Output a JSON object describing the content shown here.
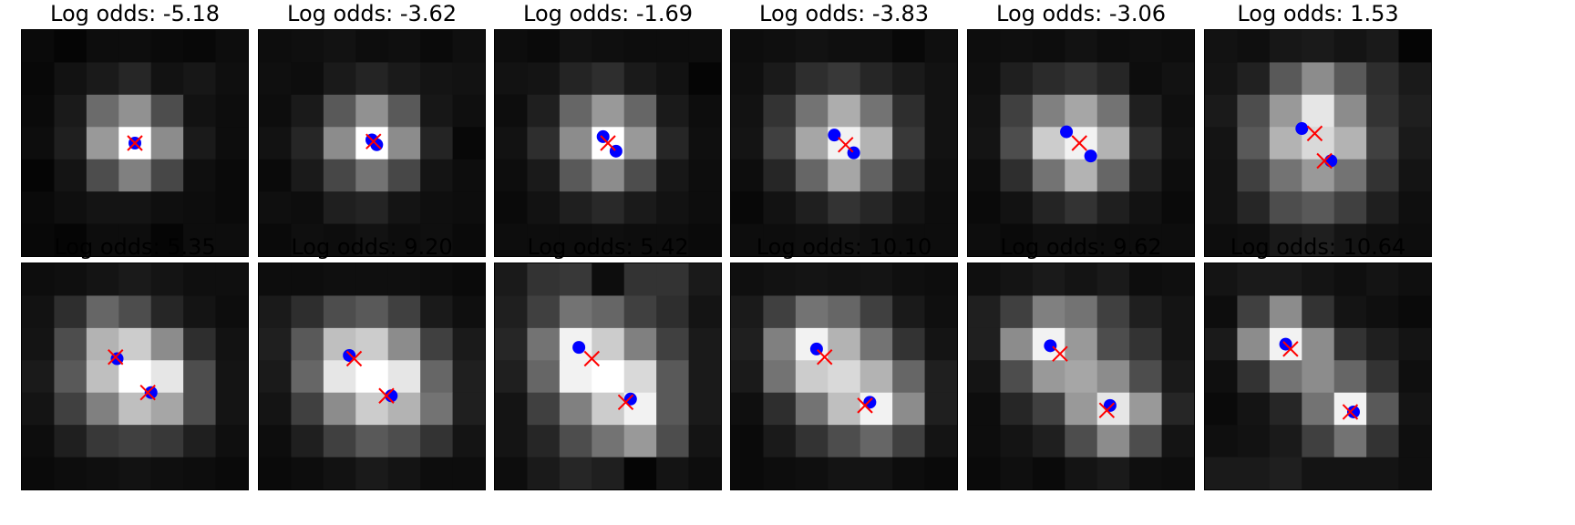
{
  "chart_data": {
    "type": "image-grid",
    "layout": {
      "rows": 2,
      "cols": 6
    },
    "pixel_grid": 7,
    "marker_legend": {
      "true_position": {
        "marker": "circle",
        "color": "#0000ff"
      },
      "estimated_position": {
        "marker": "x",
        "color": "#ff0000"
      }
    },
    "panels": [
      {
        "title": "Log odds: -5.18",
        "circles": [
          [
            3.5,
            3.5
          ]
        ],
        "crosses": [
          [
            3.5,
            3.5
          ]
        ],
        "pixels": [
          [
            0.04,
            0.02,
            0.05,
            0.05,
            0.04,
            0.03,
            0.05
          ],
          [
            0.03,
            0.07,
            0.1,
            0.15,
            0.07,
            0.09,
            0.06
          ],
          [
            0.04,
            0.1,
            0.42,
            0.57,
            0.3,
            0.07,
            0.05
          ],
          [
            0.05,
            0.12,
            0.6,
            1.0,
            0.55,
            0.1,
            0.05
          ],
          [
            0.02,
            0.08,
            0.3,
            0.5,
            0.28,
            0.06,
            0.04
          ],
          [
            0.04,
            0.06,
            0.08,
            0.08,
            0.06,
            0.05,
            0.04
          ],
          [
            0.03,
            0.02,
            0.05,
            0.05,
            0.02,
            0.05,
            0.05
          ]
        ]
      },
      {
        "title": "Log odds: -3.62",
        "circles": [
          [
            3.5,
            3.4
          ],
          [
            3.65,
            3.55
          ]
        ],
        "crosses": [
          [
            3.55,
            3.45
          ]
        ],
        "pixels": [
          [
            0.05,
            0.06,
            0.07,
            0.05,
            0.06,
            0.04,
            0.06
          ],
          [
            0.06,
            0.05,
            0.1,
            0.14,
            0.1,
            0.08,
            0.07
          ],
          [
            0.05,
            0.1,
            0.35,
            0.57,
            0.35,
            0.09,
            0.06
          ],
          [
            0.07,
            0.15,
            0.55,
            1.0,
            0.55,
            0.14,
            0.03
          ],
          [
            0.04,
            0.1,
            0.28,
            0.45,
            0.28,
            0.08,
            0.05
          ],
          [
            0.06,
            0.05,
            0.12,
            0.14,
            0.08,
            0.06,
            0.05
          ],
          [
            0.04,
            0.06,
            0.05,
            0.07,
            0.05,
            0.06,
            0.04
          ]
        ]
      },
      {
        "title": "Log odds: -1.69",
        "circles": [
          [
            3.35,
            3.3
          ],
          [
            3.75,
            3.75
          ]
        ],
        "crosses": [
          [
            3.5,
            3.5
          ]
        ],
        "pixels": [
          [
            0.05,
            0.04,
            0.07,
            0.06,
            0.05,
            0.05,
            0.05
          ],
          [
            0.07,
            0.08,
            0.14,
            0.18,
            0.1,
            0.07,
            0.02
          ],
          [
            0.05,
            0.12,
            0.4,
            0.6,
            0.4,
            0.1,
            0.05
          ],
          [
            0.07,
            0.18,
            0.55,
            1.0,
            0.6,
            0.15,
            0.06
          ],
          [
            0.05,
            0.1,
            0.35,
            0.55,
            0.3,
            0.09,
            0.05
          ],
          [
            0.04,
            0.07,
            0.12,
            0.16,
            0.1,
            0.07,
            0.05
          ],
          [
            0.05,
            0.05,
            0.05,
            0.06,
            0.05,
            0.05,
            0.04
          ]
        ]
      },
      {
        "title": "Log odds: -3.83",
        "circles": [
          [
            3.2,
            3.25
          ],
          [
            3.8,
            3.8
          ]
        ],
        "crosses": [
          [
            3.55,
            3.55
          ]
        ],
        "pixels": [
          [
            0.05,
            0.06,
            0.07,
            0.06,
            0.06,
            0.03,
            0.06
          ],
          [
            0.06,
            0.1,
            0.18,
            0.22,
            0.15,
            0.1,
            0.07
          ],
          [
            0.07,
            0.2,
            0.45,
            0.68,
            0.45,
            0.18,
            0.07
          ],
          [
            0.08,
            0.25,
            0.65,
            0.95,
            0.7,
            0.22,
            0.07
          ],
          [
            0.05,
            0.15,
            0.4,
            0.65,
            0.38,
            0.15,
            0.06
          ],
          [
            0.03,
            0.07,
            0.12,
            0.2,
            0.15,
            0.08,
            0.05
          ],
          [
            0.05,
            0.05,
            0.06,
            0.07,
            0.06,
            0.05,
            0.05
          ]
        ]
      },
      {
        "title": "Log odds: -3.06",
        "circles": [
          [
            3.05,
            3.15
          ],
          [
            3.8,
            3.9
          ]
        ],
        "crosses": [
          [
            3.45,
            3.5
          ]
        ],
        "pixels": [
          [
            0.05,
            0.06,
            0.05,
            0.07,
            0.05,
            0.06,
            0.05
          ],
          [
            0.06,
            0.12,
            0.17,
            0.2,
            0.15,
            0.05,
            0.07
          ],
          [
            0.07,
            0.25,
            0.5,
            0.65,
            0.45,
            0.12,
            0.06
          ],
          [
            0.08,
            0.3,
            0.8,
            0.95,
            0.7,
            0.18,
            0.07
          ],
          [
            0.05,
            0.18,
            0.45,
            0.7,
            0.4,
            0.12,
            0.05
          ],
          [
            0.04,
            0.07,
            0.14,
            0.2,
            0.12,
            0.07,
            0.04
          ],
          [
            0.05,
            0.04,
            0.06,
            0.06,
            0.05,
            0.05,
            0.05
          ]
        ]
      },
      {
        "title": "Log odds: 1.53",
        "circles": [
          [
            3.0,
            3.05
          ],
          [
            3.9,
            4.05
          ]
        ],
        "crosses": [
          [
            3.4,
            3.2
          ],
          [
            3.7,
            4.05
          ]
        ],
        "pixels": [
          [
            0.07,
            0.06,
            0.09,
            0.1,
            0.08,
            0.1,
            0.02
          ],
          [
            0.08,
            0.13,
            0.35,
            0.55,
            0.35,
            0.18,
            0.1
          ],
          [
            0.1,
            0.3,
            0.6,
            0.9,
            0.55,
            0.2,
            0.12
          ],
          [
            0.08,
            0.35,
            0.7,
            0.85,
            0.7,
            0.25,
            0.1
          ],
          [
            0.07,
            0.25,
            0.45,
            0.6,
            0.45,
            0.2,
            0.08
          ],
          [
            0.07,
            0.15,
            0.3,
            0.35,
            0.25,
            0.12,
            0.06
          ],
          [
            0.05,
            0.06,
            0.1,
            0.12,
            0.08,
            0.06,
            0.05
          ]
        ]
      },
      {
        "title": "Log odds: 5.35",
        "circles": [
          [
            2.95,
            2.95
          ],
          [
            4.0,
            4.0
          ]
        ],
        "crosses": [
          [
            2.9,
            2.9
          ],
          [
            3.9,
            4.0
          ]
        ],
        "pixels": [
          [
            0.05,
            0.06,
            0.08,
            0.1,
            0.08,
            0.06,
            0.06
          ],
          [
            0.07,
            0.18,
            0.4,
            0.3,
            0.15,
            0.08,
            0.05
          ],
          [
            0.08,
            0.3,
            0.7,
            0.8,
            0.55,
            0.18,
            0.07
          ],
          [
            0.1,
            0.35,
            0.75,
            1.0,
            0.9,
            0.3,
            0.08
          ],
          [
            0.08,
            0.25,
            0.5,
            0.75,
            0.65,
            0.3,
            0.08
          ],
          [
            0.05,
            0.12,
            0.22,
            0.25,
            0.22,
            0.12,
            0.06
          ],
          [
            0.04,
            0.05,
            0.06,
            0.07,
            0.06,
            0.05,
            0.04
          ]
        ]
      },
      {
        "title": "Log odds: 9.20",
        "circles": [
          [
            2.8,
            2.85
          ],
          [
            4.1,
            4.1
          ]
        ],
        "crosses": [
          [
            2.95,
            2.95
          ],
          [
            3.95,
            4.1
          ]
        ],
        "pixels": [
          [
            0.05,
            0.05,
            0.06,
            0.06,
            0.06,
            0.05,
            0.04
          ],
          [
            0.1,
            0.18,
            0.3,
            0.35,
            0.25,
            0.1,
            0.06
          ],
          [
            0.12,
            0.35,
            0.75,
            0.8,
            0.55,
            0.25,
            0.1
          ],
          [
            0.1,
            0.4,
            0.9,
            1.0,
            0.9,
            0.4,
            0.12
          ],
          [
            0.08,
            0.25,
            0.55,
            0.8,
            0.7,
            0.45,
            0.12
          ],
          [
            0.05,
            0.12,
            0.25,
            0.35,
            0.3,
            0.2,
            0.08
          ],
          [
            0.04,
            0.05,
            0.07,
            0.1,
            0.08,
            0.05,
            0.05
          ]
        ]
      },
      {
        "title": "Log odds: 5.42",
        "circles": [
          [
            2.6,
            2.6
          ],
          [
            4.2,
            4.2
          ]
        ],
        "crosses": [
          [
            3.0,
            2.95
          ],
          [
            4.05,
            4.3
          ]
        ],
        "pixels": [
          [
            0.1,
            0.2,
            0.22,
            0.05,
            0.2,
            0.2,
            0.1
          ],
          [
            0.12,
            0.25,
            0.45,
            0.4,
            0.25,
            0.18,
            0.08
          ],
          [
            0.15,
            0.45,
            0.95,
            0.8,
            0.5,
            0.25,
            0.1
          ],
          [
            0.12,
            0.4,
            0.95,
            1.0,
            0.85,
            0.35,
            0.1
          ],
          [
            0.08,
            0.25,
            0.5,
            0.8,
            0.95,
            0.35,
            0.1
          ],
          [
            0.08,
            0.15,
            0.3,
            0.45,
            0.6,
            0.3,
            0.08
          ],
          [
            0.05,
            0.1,
            0.15,
            0.12,
            0.02,
            0.08,
            0.05
          ]
        ]
      },
      {
        "title": "Log odds: 10.10",
        "circles": [
          [
            2.65,
            2.65
          ],
          [
            4.3,
            4.3
          ]
        ],
        "crosses": [
          [
            2.9,
            2.9
          ],
          [
            4.15,
            4.4
          ]
        ],
        "pixels": [
          [
            0.06,
            0.07,
            0.08,
            0.07,
            0.08,
            0.06,
            0.05
          ],
          [
            0.1,
            0.25,
            0.45,
            0.4,
            0.25,
            0.1,
            0.06
          ],
          [
            0.12,
            0.5,
            0.95,
            0.7,
            0.45,
            0.2,
            0.08
          ],
          [
            0.1,
            0.45,
            0.8,
            0.85,
            0.7,
            0.4,
            0.12
          ],
          [
            0.06,
            0.18,
            0.45,
            0.75,
            0.95,
            0.55,
            0.12
          ],
          [
            0.04,
            0.1,
            0.2,
            0.3,
            0.4,
            0.25,
            0.08
          ],
          [
            0.04,
            0.05,
            0.06,
            0.08,
            0.08,
            0.05,
            0.04
          ]
        ]
      },
      {
        "title": "Log odds: 9.62",
        "circles": [
          [
            2.55,
            2.55
          ],
          [
            4.4,
            4.4
          ]
        ],
        "crosses": [
          [
            2.85,
            2.8
          ],
          [
            4.3,
            4.55
          ]
        ],
        "pixels": [
          [
            0.06,
            0.08,
            0.1,
            0.08,
            0.1,
            0.05,
            0.06
          ],
          [
            0.12,
            0.25,
            0.5,
            0.45,
            0.25,
            0.12,
            0.08
          ],
          [
            0.12,
            0.55,
            0.95,
            0.6,
            0.3,
            0.2,
            0.08
          ],
          [
            0.08,
            0.3,
            0.6,
            0.65,
            0.55,
            0.3,
            0.1
          ],
          [
            0.05,
            0.15,
            0.25,
            0.6,
            0.9,
            0.6,
            0.15
          ],
          [
            0.05,
            0.08,
            0.12,
            0.3,
            0.55,
            0.3,
            0.08
          ],
          [
            0.04,
            0.06,
            0.04,
            0.08,
            0.1,
            0.06,
            0.05
          ]
        ]
      },
      {
        "title": "Log odds: 10.64",
        "circles": [
          [
            2.5,
            2.5
          ],
          [
            4.6,
            4.6
          ]
        ],
        "crosses": [
          [
            2.65,
            2.65
          ],
          [
            4.5,
            4.6
          ]
        ],
        "pixels": [
          [
            0.08,
            0.1,
            0.1,
            0.08,
            0.06,
            0.08,
            0.06
          ],
          [
            0.05,
            0.25,
            0.55,
            0.2,
            0.08,
            0.06,
            0.04
          ],
          [
            0.1,
            0.55,
            0.95,
            0.55,
            0.2,
            0.12,
            0.08
          ],
          [
            0.06,
            0.2,
            0.45,
            0.55,
            0.4,
            0.2,
            0.06
          ],
          [
            0.04,
            0.08,
            0.15,
            0.45,
            0.95,
            0.35,
            0.08
          ],
          [
            0.06,
            0.07,
            0.1,
            0.25,
            0.45,
            0.2,
            0.06
          ],
          [
            0.1,
            0.1,
            0.12,
            0.08,
            0.08,
            0.08,
            0.06
          ]
        ]
      }
    ]
  }
}
